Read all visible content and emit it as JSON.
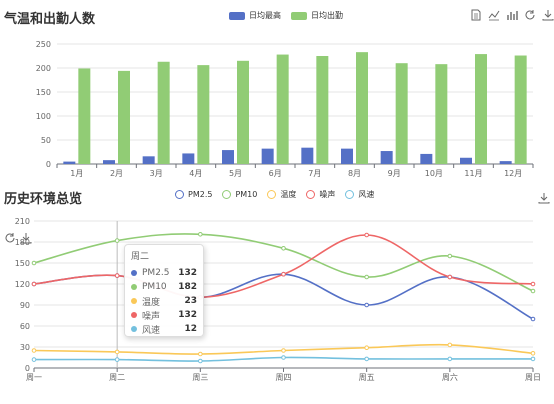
{
  "panel1": {
    "title": "气温和出勤人数",
    "legend": [
      {
        "label": "日均最高",
        "color": "#5470c6"
      },
      {
        "label": "日均出勤",
        "color": "#91cc75"
      }
    ],
    "toolbox": [
      "data-view-icon",
      "line-chart-icon",
      "bar-chart-icon",
      "refresh-icon",
      "download-icon"
    ]
  },
  "panel2": {
    "title": "历史环境总览",
    "legend": [
      {
        "label": "PM2.5",
        "color": "#5470c6"
      },
      {
        "label": "PM10",
        "color": "#91cc75"
      },
      {
        "label": "温度",
        "color": "#fac858"
      },
      {
        "label": "噪声",
        "color": "#ee6666"
      },
      {
        "label": "风速",
        "color": "#73c0de"
      }
    ],
    "tooltip": {
      "title": "周二",
      "rows": [
        {
          "name": "PM2.5",
          "value": "132",
          "color": "#5470c6"
        },
        {
          "name": "PM10",
          "value": "182",
          "color": "#91cc75"
        },
        {
          "name": "温度",
          "value": "23",
          "color": "#fac858"
        },
        {
          "name": "噪声",
          "value": "132",
          "color": "#ee6666"
        },
        {
          "name": "风速",
          "value": "12",
          "color": "#73c0de"
        }
      ]
    }
  },
  "chart_data": [
    {
      "type": "bar",
      "title": "气温和出勤人数",
      "categories": [
        "1月",
        "2月",
        "3月",
        "4月",
        "5月",
        "6月",
        "7月",
        "8月",
        "9月",
        "10月",
        "11月",
        "12月"
      ],
      "series": [
        {
          "name": "日均最高",
          "color": "#5470c6",
          "values": [
            5,
            8,
            16,
            22,
            29,
            32,
            34,
            32,
            27,
            21,
            13,
            6
          ]
        },
        {
          "name": "日均出勤",
          "color": "#91cc75",
          "values": [
            199,
            194,
            213,
            206,
            215,
            228,
            225,
            233,
            210,
            208,
            229,
            226
          ]
        }
      ],
      "yticks": [
        "0",
        "50",
        "100",
        "150",
        "200",
        "250"
      ],
      "ylim": [
        0,
        250
      ],
      "grid": true,
      "legend": "top-center"
    },
    {
      "type": "line",
      "title": "历史环境总览",
      "categories": [
        "周一",
        "周二",
        "周三",
        "周四",
        "周五",
        "周六",
        "周日"
      ],
      "series": [
        {
          "name": "PM2.5",
          "color": "#5470c6",
          "values": [
            120,
            132,
            101,
            134,
            90,
            130,
            70
          ]
        },
        {
          "name": "PM10",
          "color": "#91cc75",
          "values": [
            150,
            182,
            191,
            171,
            130,
            160,
            110
          ]
        },
        {
          "name": "温度",
          "color": "#fac858",
          "values": [
            25,
            23,
            20,
            25,
            29,
            33,
            21
          ]
        },
        {
          "name": "噪声",
          "color": "#ee6666",
          "values": [
            120,
            132,
            101,
            134,
            190,
            130,
            120
          ]
        },
        {
          "name": "风速",
          "color": "#73c0de",
          "values": [
            12,
            12,
            10,
            15,
            13,
            13,
            13
          ]
        }
      ],
      "yticks": [
        "0",
        "30",
        "60",
        "90",
        "120",
        "150",
        "180",
        "210"
      ],
      "ylim": [
        0,
        210
      ],
      "smooth": true,
      "grid": true,
      "legend": "top-center"
    }
  ]
}
